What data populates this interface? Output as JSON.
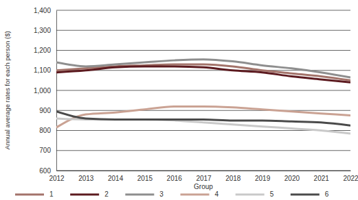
{
  "chart_data": {
    "type": "line",
    "x_label": "Group",
    "y_label": "Annual average rates for each person ($)",
    "x": [
      2012,
      2013,
      2014,
      2015,
      2016,
      2017,
      2018,
      2019,
      2020,
      2021,
      2022
    ],
    "xlim": [
      2012,
      2022
    ],
    "xticks": [
      2012,
      2013,
      2014,
      2015,
      2016,
      2017,
      2018,
      2019,
      2020,
      2021,
      2022
    ],
    "ylim": [
      600,
      1400
    ],
    "yticks": [
      600,
      700,
      800,
      900,
      {
        "value": 1000,
        "label": "1,000"
      },
      {
        "value": 1100,
        "label": "1,100"
      },
      {
        "value": 1200,
        "label": "1,200"
      },
      {
        "value": 1300,
        "label": "1,300"
      },
      {
        "value": 1400,
        "label": "1,400"
      }
    ],
    "grid": true,
    "legend": "bottom",
    "series": [
      {
        "name": "1",
        "color": "#a3736a",
        "values": [
          1100,
          1110,
          1120,
          1125,
          1130,
          1130,
          1120,
          1100,
          1085,
          1070,
          1050
        ]
      },
      {
        "name": "2",
        "color": "#5c1a1f",
        "values": [
          1090,
          1100,
          1115,
          1120,
          1120,
          1115,
          1100,
          1090,
          1070,
          1055,
          1040
        ]
      },
      {
        "name": "3",
        "color": "#8e8e8e",
        "values": [
          1140,
          1120,
          1130,
          1140,
          1150,
          1155,
          1145,
          1125,
          1110,
          1090,
          1065
        ]
      },
      {
        "name": "4",
        "color": "#caa293",
        "values": [
          815,
          880,
          890,
          905,
          920,
          920,
          915,
          905,
          895,
          885,
          875
        ]
      },
      {
        "name": "5",
        "color": "#c9c9c9",
        "values": [
          860,
          855,
          855,
          855,
          850,
          840,
          830,
          820,
          810,
          800,
          785
        ]
      },
      {
        "name": "6",
        "color": "#4a4a4a",
        "values": [
          895,
          860,
          855,
          855,
          855,
          855,
          850,
          850,
          845,
          840,
          825
        ]
      }
    ]
  }
}
